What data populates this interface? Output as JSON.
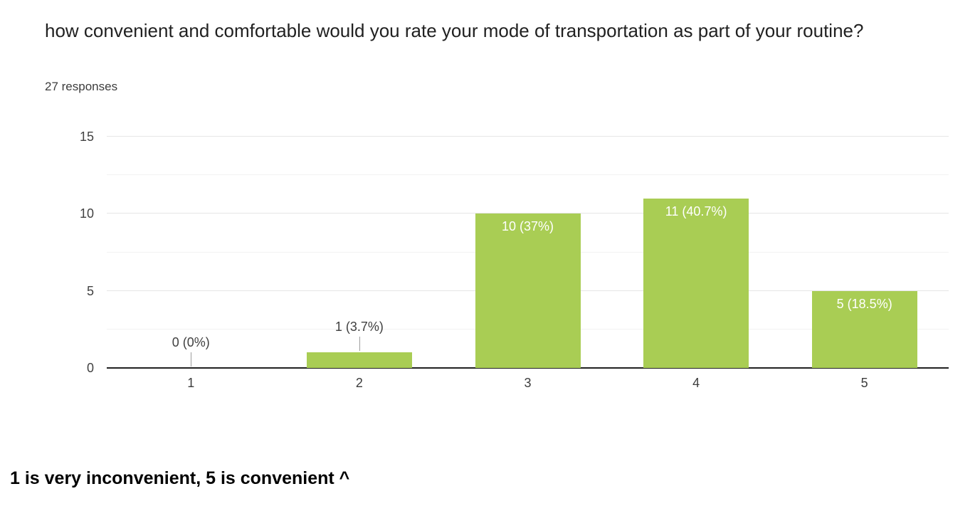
{
  "header": {
    "title": "how convenient and comfortable would you rate your mode of transportation as part of your routine?",
    "responses": "27 responses"
  },
  "chart_data": {
    "type": "bar",
    "title": "how convenient and comfortable would you rate your mode of transportation as part of your routine?",
    "subtitle": "27 responses",
    "categories": [
      "1",
      "2",
      "3",
      "4",
      "5"
    ],
    "values": [
      0,
      1,
      10,
      11,
      5
    ],
    "percentages": [
      "0%",
      "3.7%",
      "37%",
      "40.7%",
      "18.5%"
    ],
    "bar_labels": [
      "0 (0%)",
      "1 (3.7%)",
      "10 (37%)",
      "11 (40.7%)",
      "5 (18.5%)"
    ],
    "total_responses": 27,
    "xlabel": "",
    "ylabel": "",
    "ylim": [
      0,
      15
    ],
    "yticks": [
      0,
      5,
      10,
      15
    ],
    "yticks_minor": [
      2.5,
      7.5,
      12.5
    ],
    "grid": true,
    "legend": "none",
    "bar_color": "#a9cd54",
    "label_inside_color": "#ffffff",
    "label_outside_color": "#404040",
    "axis_line_color": "#212121",
    "gridline_color": "#e6e6e6"
  },
  "caption": "1 is very inconvenient, 5 is convenient ^"
}
